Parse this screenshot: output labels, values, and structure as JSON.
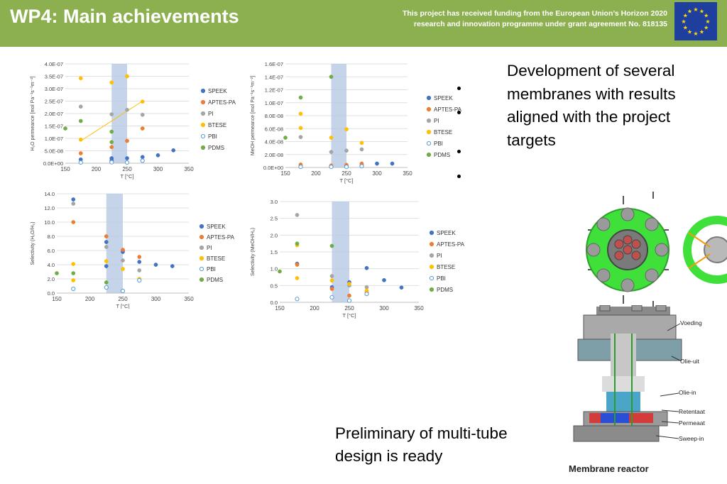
{
  "header": {
    "title": "WP4: Main achievements",
    "funding_line1": "This project has received funding from the European Union’s Horizon 2020",
    "funding_line2": "research and innovation programme under grant agreement No. 818135",
    "bg_color": "#8cb04f"
  },
  "legend_colors": {
    "SPEEK": "#4472c4",
    "APTES-PA": "#ed7d31",
    "PI": "#a5a5a5",
    "BTESE": "#ffc000",
    "PBI": "#5b9bd5",
    "PDMS": "#70ad47"
  },
  "chart_data": [
    {
      "id": "h2o-perm",
      "type": "scatter",
      "ylabel": "H₂O permeance [mol Pa⁻¹s⁻¹m⁻²]",
      "xlabel": "T [°C]",
      "xlim": [
        150,
        350
      ],
      "ylim": [
        0,
        4e-07
      ],
      "xticks": [
        "150",
        "200",
        "250",
        "300",
        "350"
      ],
      "yticks": [
        "0.0E+00",
        "5.0E-08",
        "1.0E-07",
        "1.5E-07",
        "2.0E-07",
        "2.5E-07",
        "3.0E-07",
        "3.5E-07",
        "4.0E-07"
      ],
      "shaded_x": [
        225,
        250
      ],
      "legend": [
        "SPEEK",
        "APTES-PA",
        "PI",
        "BTESE",
        "PBI",
        "PDMS"
      ],
      "trendline": {
        "series": "BTESE",
        "x": [
          175,
          275
        ],
        "y": [
          9e-08,
          2.5e-07
        ]
      },
      "series": [
        {
          "name": "SPEEK",
          "x": [
            175,
            225,
            225,
            250,
            275,
            300,
            325
          ],
          "y": [
            1.5e-08,
            1.2e-08,
            2e-08,
            2e-08,
            2.5e-08,
            3.2e-08,
            5.2e-08
          ]
        },
        {
          "name": "APTES-PA",
          "x": [
            175,
            225,
            250,
            275
          ],
          "y": [
            4e-08,
            6.5e-08,
            9e-08,
            1.4e-07
          ]
        },
        {
          "name": "PI",
          "x": [
            175,
            225,
            250,
            275
          ],
          "y": [
            2.28e-07,
            1.97e-07,
            2.15e-07,
            1.95e-07
          ]
        },
        {
          "name": "BTESE",
          "x": [
            175,
            225,
            250,
            275,
            175
          ],
          "y": [
            3.42e-07,
            3.25e-07,
            3.5e-07,
            2.48e-07,
            9.5e-08
          ]
        },
        {
          "name": "PBI",
          "x": [
            175,
            225,
            250,
            275
          ],
          "y": [
            3e-09,
            4e-09,
            3e-09,
            1e-08
          ]
        },
        {
          "name": "PDMS",
          "x": [
            150,
            175,
            225,
            225
          ],
          "y": [
            1.4e-07,
            1.7e-07,
            1.27e-07,
            8.5e-08
          ]
        }
      ]
    },
    {
      "id": "meoh-perm",
      "type": "scatter",
      "ylabel": "MeOH permeance [mol Pa⁻¹s⁻¹m⁻²]",
      "xlabel": "T [°C]",
      "xlim": [
        150,
        350
      ],
      "ylim": [
        0,
        1.6e-07
      ],
      "xticks": [
        "150",
        "200",
        "250",
        "300",
        "350"
      ],
      "yticks": [
        "0.0E+00",
        "2.0E-08",
        "4.0E-08",
        "6.0E-08",
        "8.0E-08",
        "1.0E-07",
        "1.2E-07",
        "1.4E-07",
        "1.6E-07"
      ],
      "shaded_x": [
        225,
        250
      ],
      "legend": [
        "SPEEK",
        "APTES-PA",
        "PI",
        "BTESE",
        "PBI",
        "PDMS"
      ],
      "series": [
        {
          "name": "SPEEK",
          "x": [
            175,
            225,
            250,
            275,
            300,
            325
          ],
          "y": [
            2e-09,
            1.5e-09,
            2.5e-09,
            4e-09,
            6e-09,
            6e-09
          ]
        },
        {
          "name": "APTES-PA",
          "x": [
            175,
            225,
            250,
            275
          ],
          "y": [
            4.5e-09,
            3e-09,
            4e-09,
            6e-09
          ]
        },
        {
          "name": "PI",
          "x": [
            175,
            225,
            250,
            275
          ],
          "y": [
            4.7e-08,
            2.4e-08,
            2.6e-08,
            2.8e-08
          ]
        },
        {
          "name": "BTESE",
          "x": [
            175,
            175,
            225,
            250,
            275
          ],
          "y": [
            8.3e-08,
            6.1e-08,
            4.6e-08,
            5.9e-08,
            3.8e-08
          ]
        },
        {
          "name": "PBI",
          "x": [
            175,
            225,
            250,
            275
          ],
          "y": [
            1e-09,
            1e-09,
            1e-09,
            2e-09
          ]
        },
        {
          "name": "PDMS",
          "x": [
            150,
            175,
            225
          ],
          "y": [
            4.6e-08,
            1.08e-07,
            1.4e-07
          ]
        }
      ]
    },
    {
      "id": "h2o-sel",
      "type": "scatter",
      "ylabel": "Selectivity (H₂O/H₂)",
      "xlabel": "T [°C]",
      "xlim": [
        150,
        350
      ],
      "ylim": [
        0,
        14
      ],
      "xticks": [
        "150",
        "200",
        "250",
        "300",
        "350"
      ],
      "yticks": [
        "0.0",
        "2.0",
        "4.0",
        "6.0",
        "8.0",
        "10.0",
        "12.0",
        "14.0"
      ],
      "shaded_x": [
        225,
        250
      ],
      "legend": [
        "SPEEK",
        "APTES-PA",
        "PI",
        "BTESE",
        "PBI",
        "PDMS"
      ],
      "series": [
        {
          "name": "SPEEK",
          "x": [
            175,
            225,
            225,
            250,
            250,
            275,
            300,
            325
          ],
          "y": [
            13.2,
            7.2,
            3.8,
            5.8,
            6.0,
            4.4,
            4.0,
            3.8
          ]
        },
        {
          "name": "APTES-PA",
          "x": [
            175,
            225,
            250,
            275
          ],
          "y": [
            10.0,
            8.0,
            6.1,
            5.1
          ]
        },
        {
          "name": "PI",
          "x": [
            175,
            225,
            250,
            275
          ],
          "y": [
            12.6,
            6.5,
            4.6,
            3.2
          ]
        },
        {
          "name": "BTESE",
          "x": [
            175,
            175,
            225,
            250,
            275
          ],
          "y": [
            4.1,
            1.8,
            4.5,
            3.4,
            2.0
          ]
        },
        {
          "name": "PBI",
          "x": [
            175,
            225,
            250,
            275
          ],
          "y": [
            0.6,
            0.8,
            0.3,
            1.8
          ]
        },
        {
          "name": "PDMS",
          "x": [
            150,
            175,
            225
          ],
          "y": [
            2.8,
            2.8,
            1.5
          ]
        }
      ]
    },
    {
      "id": "meoh-sel",
      "type": "scatter",
      "ylabel": "Selectivity (MeOH/H₂)",
      "xlabel": "T [°C]",
      "xlim": [
        150,
        350
      ],
      "ylim": [
        0,
        3.0
      ],
      "xticks": [
        "150",
        "200",
        "250",
        "300",
        "350"
      ],
      "yticks": [
        "0.0",
        "0.5",
        "1.0",
        "1.5",
        "2.0",
        "2.5",
        "3.0"
      ],
      "shaded_x": [
        225,
        250
      ],
      "legend": [
        "SPEEK",
        "APTES-PA",
        "PI",
        "BTESE",
        "PBI",
        "PDMS"
      ],
      "series": [
        {
          "name": "SPEEK",
          "x": [
            175,
            225,
            250,
            275,
            300,
            325
          ],
          "y": [
            1.15,
            0.45,
            0.6,
            1.02,
            0.66,
            0.44
          ]
        },
        {
          "name": "APTES-PA",
          "x": [
            175,
            225,
            250,
            275
          ],
          "y": [
            1.12,
            0.4,
            0.2,
            0.3
          ]
        },
        {
          "name": "PI",
          "x": [
            175,
            225,
            250,
            275
          ],
          "y": [
            2.6,
            0.78,
            0.5,
            0.45
          ]
        },
        {
          "name": "BTESE",
          "x": [
            175,
            175,
            225,
            250,
            275
          ],
          "y": [
            1.7,
            0.72,
            0.65,
            0.55,
            0.35
          ]
        },
        {
          "name": "PBI",
          "x": [
            175,
            225,
            250,
            275
          ],
          "y": [
            0.1,
            0.15,
            0.05,
            0.25
          ]
        },
        {
          "name": "PDMS",
          "x": [
            150,
            175,
            225
          ],
          "y": [
            0.92,
            1.75,
            1.68
          ]
        }
      ]
    }
  ],
  "development_text": "Development of several membranes with results aligned with the project targets",
  "multitube_text": "Preliminary of multi-tube design is ready",
  "reactor": {
    "labels": [
      "Voeding",
      "Olie-uit",
      "Olie-in",
      "Retentaat",
      "Permeaat",
      "Sweep-in"
    ],
    "caption": "Membrane reactor"
  }
}
